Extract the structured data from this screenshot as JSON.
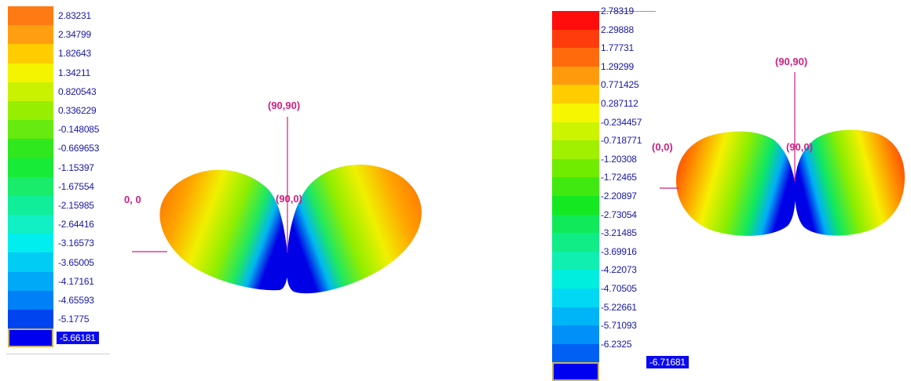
{
  "left_panel": {
    "legend": {
      "values": [
        "2.83231",
        "2.34799",
        "1.82643",
        "1.34211",
        "0.820543",
        "0.336229",
        "-0.148085",
        "-0.669653",
        "-1.15397",
        "-1.67554",
        "-2.15985",
        "-2.64416",
        "-3.16573",
        "-3.65005",
        "-4.17161",
        "-4.65593",
        "-5.1775",
        "-5.66181"
      ],
      "colors": [
        "#ff7a12",
        "#ff9e10",
        "#ffcc00",
        "#f4f400",
        "#c8f200",
        "#98ee00",
        "#66ea10",
        "#30e81e",
        "#18ea38",
        "#18ec6a",
        "#10ee9a",
        "#10f0c4",
        "#00eeee",
        "#00ccf4",
        "#00a8f8",
        "#0080f6",
        "#0044f0",
        "#0000f0"
      ],
      "selected_index": 17
    },
    "labels": {
      "origin": "0, 0",
      "top": "(90,90)",
      "center": "(90,0)"
    }
  },
  "right_panel": {
    "legend": {
      "values": [
        "2.78319",
        "2.29888",
        "1.77731",
        "1.29299",
        "0.771425",
        "0.287112",
        "-0.234457",
        "-0.718771",
        "-1.20308",
        "-1.72465",
        "-2.20897",
        "-2.73054",
        "-3.21485",
        "-3.69916",
        "-4.22073",
        "-4.70505",
        "-5.22661",
        "-5.71093",
        "-6.2325",
        "-6.71681"
      ],
      "colors": [
        "#ff0c0c",
        "#ff3c0c",
        "#ff6a0c",
        "#ff9a0c",
        "#ffcc00",
        "#f6f600",
        "#ccf400",
        "#a0f000",
        "#70ec00",
        "#40ea10",
        "#14e820",
        "#10ea5a",
        "#10ec86",
        "#10eeb0",
        "#00eede",
        "#00d8f4",
        "#00b4f8",
        "#0090f8",
        "#0060f4",
        "#0000f0"
      ],
      "selected_index": 19
    },
    "labels": {
      "origin": "(0,0)",
      "top": "(90,90)",
      "center": "(90,0)"
    }
  }
}
